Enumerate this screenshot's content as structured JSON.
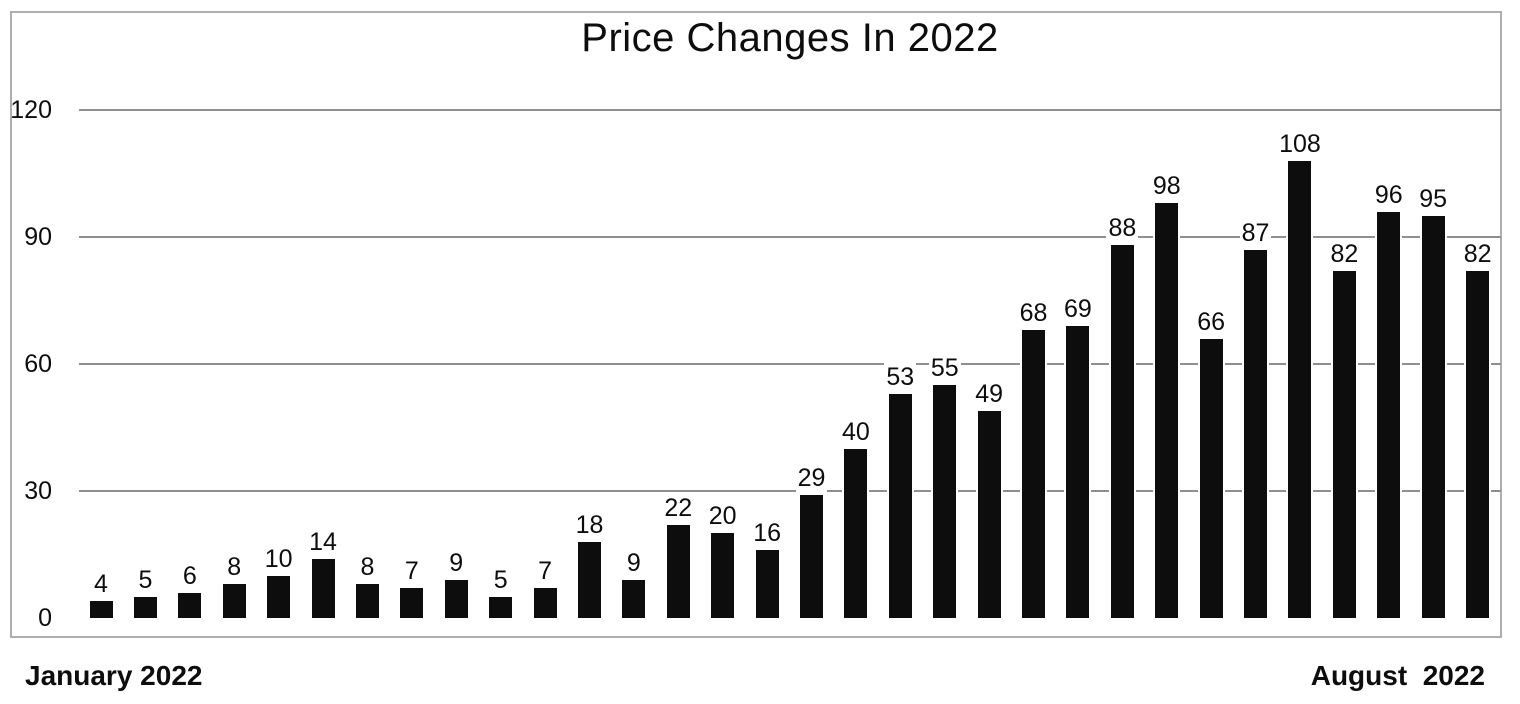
{
  "title": "Price Changes In 2022",
  "x_axis": {
    "left_label": "January 2022",
    "right_label": "August  2022"
  },
  "y_axis": {
    "ticks": [
      0,
      30,
      60,
      90,
      120
    ]
  },
  "colors": {
    "bar": "#0d0d0d",
    "gridline": "#8f8f8f",
    "frame_border": "#aeaeae",
    "background": "#ffffff",
    "text": "#0d0d0d"
  },
  "chart_data": {
    "type": "bar",
    "title": "Price Changes In 2022",
    "values": [
      4,
      5,
      6,
      8,
      10,
      14,
      8,
      7,
      9,
      5,
      7,
      18,
      9,
      22,
      20,
      16,
      29,
      40,
      53,
      55,
      49,
      68,
      69,
      88,
      98,
      66,
      87,
      108,
      82,
      96,
      95,
      82
    ],
    "data_labels": [
      4,
      5,
      6,
      8,
      10,
      14,
      8,
      7,
      9,
      5,
      7,
      18,
      9,
      22,
      20,
      16,
      29,
      40,
      53,
      55,
      49,
      68,
      69,
      88,
      98,
      66,
      87,
      108,
      82,
      96,
      95,
      82
    ],
    "x_start_label": "January 2022",
    "x_end_label": "August  2022",
    "xlabel": "",
    "ylabel": "",
    "ylim": [
      0,
      120
    ],
    "yticks": [
      0,
      30,
      60,
      90,
      120
    ],
    "grid": true,
    "legend": false,
    "bar_color": "#0d0d0d"
  }
}
